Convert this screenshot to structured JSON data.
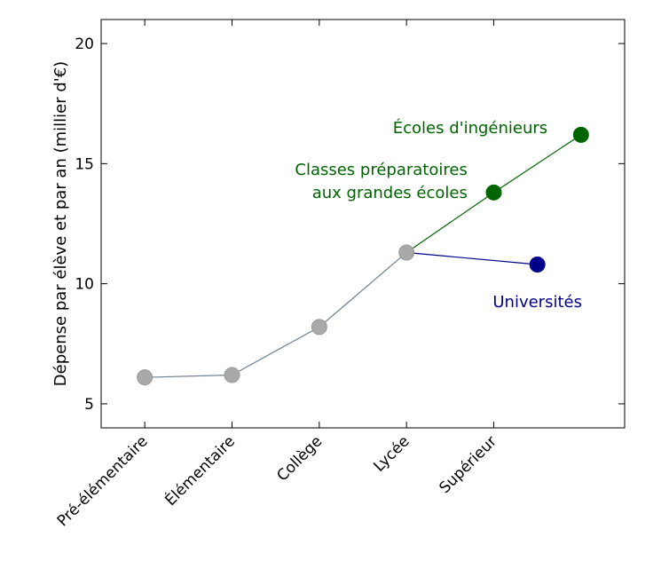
{
  "chart_data": {
    "type": "line",
    "title": "",
    "xlabel": "",
    "ylabel": "Dépense par élève et par an (millier d'€)",
    "ylim": [
      4,
      21
    ],
    "yticks": [
      5,
      10,
      15,
      20
    ],
    "categories": [
      "Pré-élémentaire",
      "Élémentaire",
      "Collège",
      "Lycée",
      "Supérieur"
    ],
    "xlim": [
      -0.5,
      5.5
    ],
    "grid": false,
    "series": [
      {
        "key": "common",
        "color": "#708090",
        "marker_color": "#a9a9a9",
        "x": [
          0,
          1,
          2,
          3
        ],
        "y": [
          6.1,
          6.2,
          8.2,
          11.3
        ]
      },
      {
        "key": "universites",
        "name": "Universités",
        "color": "#00008b",
        "marker_color": "#00008b",
        "x": [
          3,
          4.5
        ],
        "y": [
          11.3,
          10.8
        ]
      },
      {
        "key": "ecoles",
        "color": "#006400",
        "marker_color": "#006400",
        "x": [
          3,
          4,
          5
        ],
        "y": [
          11.3,
          13.8,
          16.2
        ]
      }
    ],
    "annotations": [
      {
        "lines": [
          "Écoles d'ingénieurs"
        ],
        "color": "#006400",
        "x": 4.8,
        "y": 16.2
      },
      {
        "lines": [
          "Classes préparatoires",
          "aux grandes écoles"
        ],
        "color": "#006400",
        "x": 3.8,
        "y": 13.8
      },
      {
        "lines": [
          "Universités"
        ],
        "color": "#00008b",
        "x": 4.5,
        "y": 10.8
      }
    ]
  }
}
